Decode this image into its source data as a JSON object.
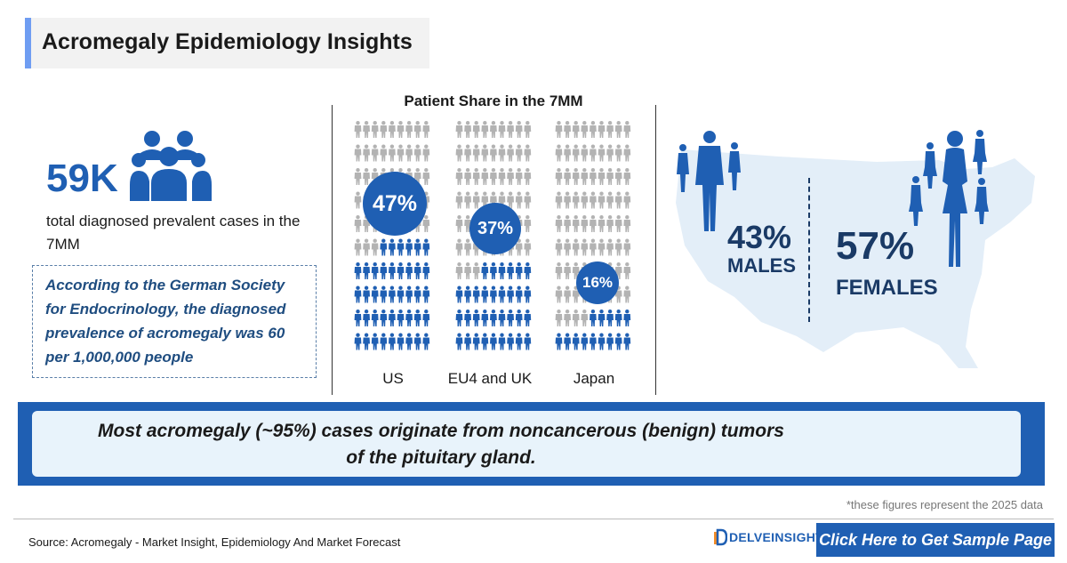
{
  "header": {
    "title": "Acromegaly Epidemiology Insights"
  },
  "stats": {
    "total_value": "59K",
    "total_desc": "total diagnosed prevalent cases in the 7MM",
    "quote": "According to the German Society for Endocrinology, the diagnosed prevalence of acromegaly was 60 per 1,000,000 people"
  },
  "share": {
    "title": "Patient Share in the 7MM",
    "columns": [
      {
        "label": "US",
        "pct": "47%",
        "value": 47
      },
      {
        "label": "EU4 and UK",
        "pct": "37%",
        "value": 37
      },
      {
        "label": "Japan",
        "pct": "16%",
        "value": 16
      }
    ]
  },
  "gender": {
    "male_pct": "43%",
    "male_label": "MALES",
    "female_pct": "57%",
    "female_label": "FEMALES"
  },
  "banner": {
    "line1": "Most acromegaly (~95%) cases originate from noncancerous (benign) tumors",
    "line2": "of the pituitary gland."
  },
  "footer": {
    "note": "*these figures represent the 2025 data",
    "source": "Source: Acromegaly - Market Insight, Epidemiology And Market Forecast",
    "logo": "DELVEINSIGHT",
    "cta": "Click Here to Get Sample Page"
  },
  "colors": {
    "accent": "#1f5fb3",
    "grey_person": "#b3b3b3",
    "map": "#e3eef8",
    "title_bar": "#6f9df2"
  }
}
